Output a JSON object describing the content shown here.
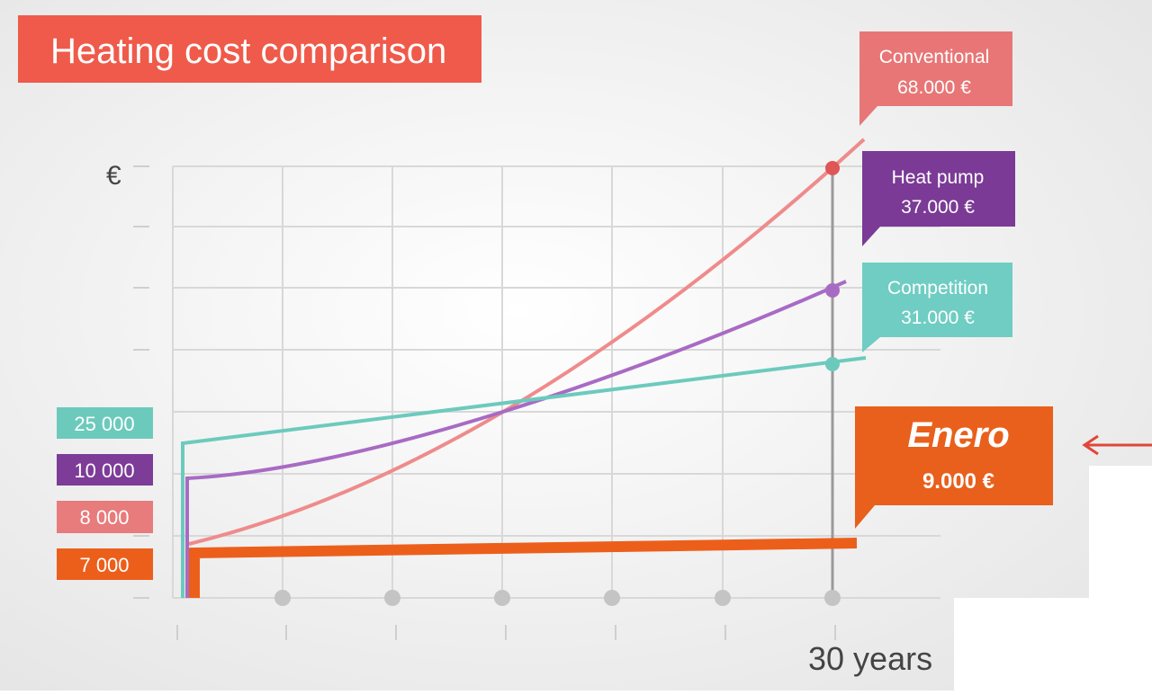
{
  "header": {
    "title": "Heating cost comparison"
  },
  "axis": {
    "y_unit": "€",
    "x_label": "30 years"
  },
  "start_labels": [
    "25 000",
    "10 000",
    "8 000",
    "7 000"
  ],
  "end_labels": [
    {
      "name": "Conventional",
      "value": "68.000 €"
    },
    {
      "name": "Heat pump",
      "value": "37.000 €"
    },
    {
      "name": "Competition",
      "value": "31.000 €"
    },
    {
      "name": "Enero",
      "value": "9.000 €"
    }
  ]
}
